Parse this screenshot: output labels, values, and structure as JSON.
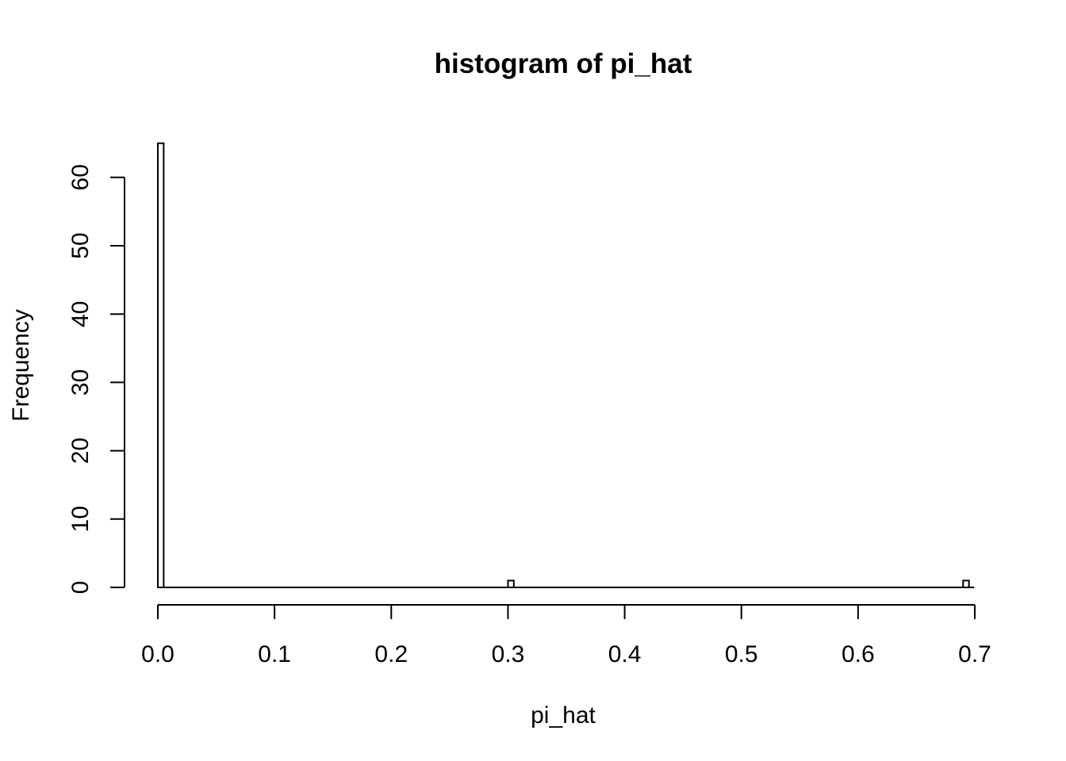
{
  "chart_data": {
    "type": "bar",
    "title": "histogram of pi_hat",
    "xlabel": "pi_hat",
    "ylabel": "Frequency",
    "xlim": [
      0.0,
      0.7
    ],
    "ylim": [
      0,
      65
    ],
    "x_ticks": [
      "0.0",
      "0.1",
      "0.2",
      "0.3",
      "0.4",
      "0.5",
      "0.6",
      "0.7"
    ],
    "y_ticks": [
      "0",
      "10",
      "20",
      "30",
      "40",
      "50",
      "60"
    ],
    "bin_width": 0.005,
    "bins": [
      {
        "start": 0.0,
        "end": 0.005,
        "count": 65
      },
      {
        "start": 0.3,
        "end": 0.305,
        "count": 1
      },
      {
        "start": 0.69,
        "end": 0.695,
        "count": 1
      }
    ],
    "grid": false
  }
}
